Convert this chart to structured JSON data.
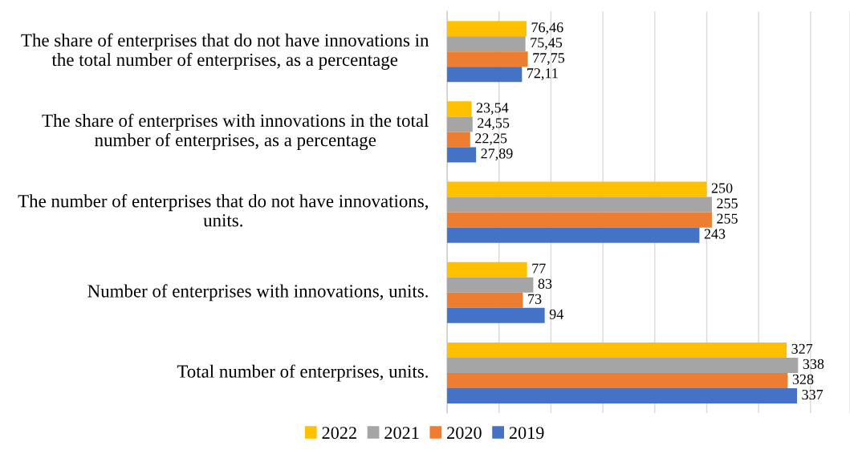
{
  "chart_data": {
    "type": "bar",
    "orientation": "horizontal",
    "categories": [
      "The share of enterprises that do not have innovations in the total number of enterprises, as a percentage",
      "The share of enterprises with innovations in the total number of enterprises, as a percentage",
      "The number of enterprises that do not have innovations, units.",
      "Number of enterprises with innovations, units.",
      "Total number of enterprises, units."
    ],
    "series": [
      {
        "name": "2022",
        "color": "#ffc000",
        "values": [
          76.46,
          23.54,
          250,
          77,
          327
        ],
        "value_labels": [
          "76,46",
          "23,54",
          "250",
          "77",
          "327"
        ]
      },
      {
        "name": "2021",
        "color": "#a5a5a5",
        "values": [
          75.45,
          24.55,
          255,
          83,
          338
        ],
        "value_labels": [
          "75,45",
          "24,55",
          "255",
          "83",
          "338"
        ]
      },
      {
        "name": "2020",
        "color": "#ed7d31",
        "values": [
          77.75,
          22.25,
          255,
          73,
          328
        ],
        "value_labels": [
          "77,75",
          "22,25",
          "255",
          "73",
          "328"
        ]
      },
      {
        "name": "2019",
        "color": "#4472c4",
        "values": [
          72.11,
          27.89,
          243,
          94,
          337
        ],
        "value_labels": [
          "72,11",
          "27,89",
          "243",
          "94",
          "337"
        ]
      }
    ],
    "xlim": [
      0,
      388
    ],
    "xticks": [
      {
        "value": 0,
        "label": null
      },
      {
        "value": 50,
        "label": null
      },
      {
        "value": 100,
        "label": null
      },
      {
        "value": 150,
        "label": null
      },
      {
        "value": 200,
        "label": null
      },
      {
        "value": 250,
        "label": null
      },
      {
        "value": 300,
        "label": null
      },
      {
        "value": 350,
        "label": null
      }
    ],
    "grid": "x",
    "legend": "bottom",
    "tick_labels": "y"
  }
}
